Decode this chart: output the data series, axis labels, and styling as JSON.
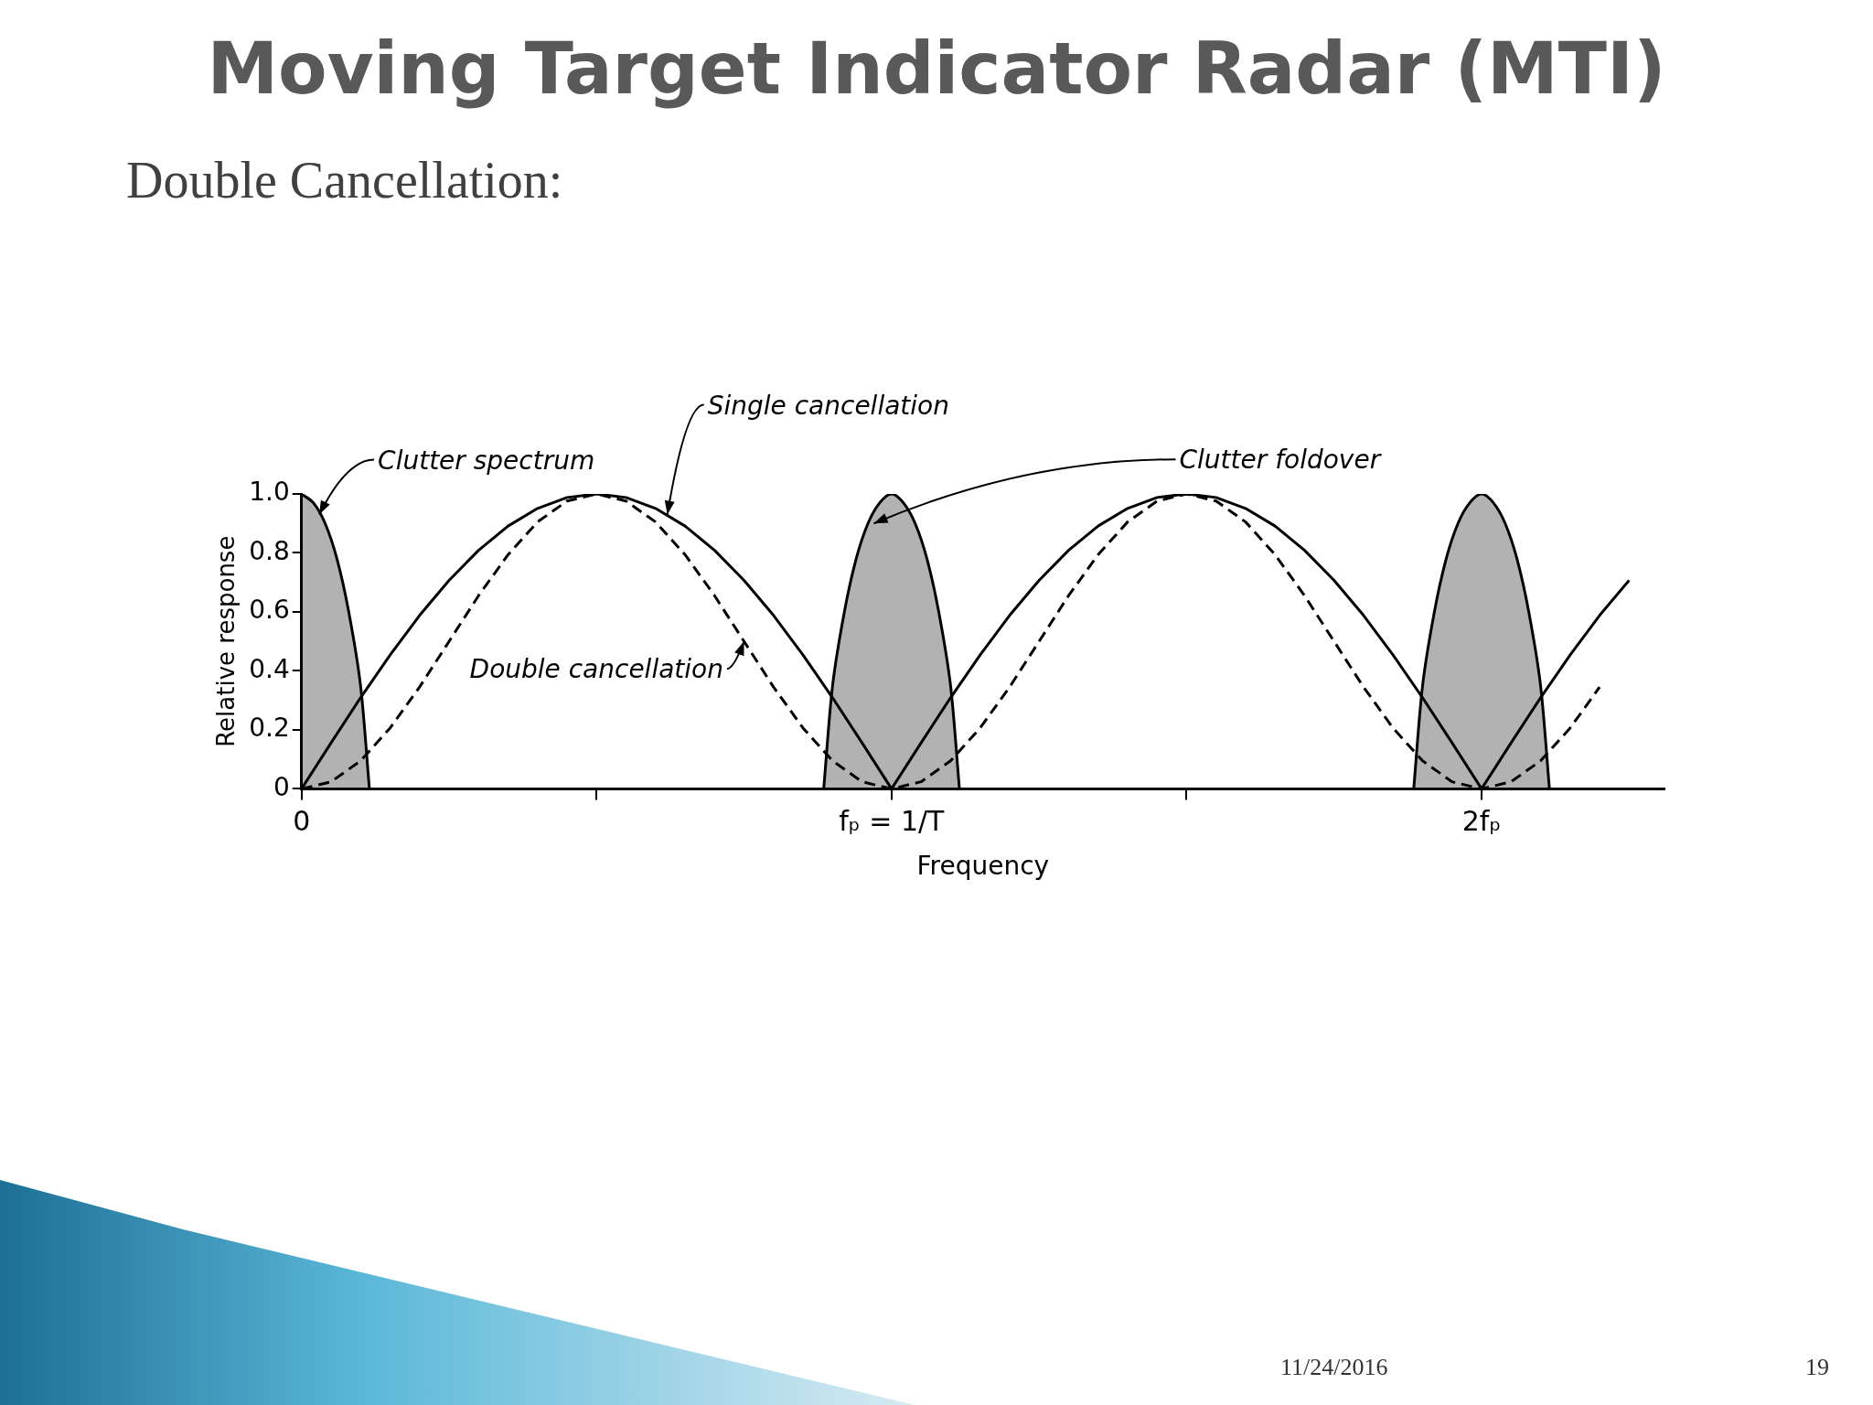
{
  "chart_data": {
    "type": "line",
    "title": "Moving Target Indicator Radar (MTI)",
    "subtitle": "Double Cancellation:",
    "xlabel": "Frequency",
    "ylabel": "Relative response",
    "x": [
      0,
      0.05,
      0.1,
      0.15,
      0.2,
      0.25,
      0.3,
      0.35,
      0.4,
      0.45,
      0.5,
      0.55,
      0.6,
      0.65,
      0.7,
      0.75,
      0.8,
      0.85,
      0.9,
      0.95,
      1,
      1.05,
      1.1,
      1.15,
      1.2,
      1.25,
      1.3,
      1.35,
      1.4,
      1.45,
      1.5,
      1.55,
      1.6,
      1.65,
      1.7,
      1.75,
      1.8,
      1.85,
      1.9,
      1.95,
      2,
      2.05,
      2.1,
      2.15,
      2.2,
      2.25
    ],
    "series": [
      {
        "type": "line",
        "color": "#000000",
        "line_style": "solid",
        "values": [
          0,
          0.156,
          0.309,
          0.454,
          0.588,
          0.707,
          0.809,
          0.891,
          0.951,
          0.988,
          1,
          0.988,
          0.951,
          0.891,
          0.809,
          0.707,
          0.588,
          0.454,
          0.309,
          0.156,
          0,
          0.156,
          0.309,
          0.454,
          0.588,
          0.707,
          0.809,
          0.891,
          0.951,
          0.988,
          1,
          0.988,
          0.951,
          0.891,
          0.809,
          0.707,
          0.588,
          0.454,
          0.309,
          0.156,
          0,
          0.156,
          0.309,
          0.454,
          0.588,
          0.707
        ]
      },
      {
        "type": "line",
        "color": "#000000",
        "line_style": "dashed",
        "values": [
          0,
          0.024,
          0.095,
          0.206,
          0.345,
          0.5,
          0.655,
          0.794,
          0.905,
          0.976,
          1,
          0.976,
          0.905,
          0.794,
          0.655,
          0.5,
          0.345,
          0.206,
          0.095,
          0.024,
          0,
          0.024,
          0.095,
          0.206,
          0.345,
          0.5,
          0.655,
          0.794,
          0.905,
          0.976,
          1,
          0.976,
          0.905,
          0.794,
          0.655,
          0.5,
          0.345,
          0.206,
          0.095,
          0.024,
          0,
          0.024,
          0.095,
          0.206,
          0.345,
          null
        ]
      },
      {
        "type": "area",
        "color": "#000000",
        "x": [
          0,
          0.02,
          0.04,
          0.06,
          0.08,
          0.1,
          0.115
        ],
        "values": [
          1,
          0.97,
          0.9,
          0.78,
          0.6,
          0.35,
          0
        ]
      },
      {
        "type": "area",
        "color": "#000000",
        "x": [
          0.885,
          0.9,
          0.92,
          0.94,
          0.96,
          0.98,
          1,
          1.02,
          1.04,
          1.06,
          1.08,
          1.1,
          1.115
        ],
        "values": [
          0,
          0.35,
          0.6,
          0.78,
          0.9,
          0.97,
          1,
          0.97,
          0.9,
          0.78,
          0.6,
          0.35,
          0
        ]
      },
      {
        "type": "area",
        "color": "#000000",
        "x": [
          1.885,
          1.9,
          1.92,
          1.94,
          1.96,
          1.98,
          2,
          2.02,
          2.04,
          2.06,
          2.08,
          2.1,
          2.115
        ],
        "values": [
          0,
          0.35,
          0.6,
          0.78,
          0.9,
          0.97,
          1,
          0.97,
          0.9,
          0.78,
          0.6,
          0.35,
          0
        ]
      }
    ],
    "xlim": [
      0,
      2.31
    ],
    "xticks": [
      {
        "value": 0,
        "label": "0"
      },
      {
        "value": 0.5,
        "label": null
      },
      {
        "value": 1,
        "label": "fₚ = 1/T"
      },
      {
        "value": 1.5,
        "label": null
      },
      {
        "value": 2,
        "label": "2fₚ"
      }
    ],
    "ylim": [
      0,
      1
    ],
    "yticks": [
      0,
      0.2,
      0.4,
      0.6,
      0.8,
      {
        "value": 1,
        "label": "1.0"
      }
    ],
    "grid": false,
    "legend": false,
    "annotations": [
      {
        "text": "Clutter spectrum",
        "x": 0.03,
        "y": 0.93
      },
      {
        "text": "Single cancellation",
        "x": 0.62,
        "y": 0.93
      },
      {
        "text": "Clutter foldover",
        "x": 0.97,
        "y": 0.9
      },
      {
        "text": "Double cancellation",
        "x": 0.75,
        "y": 0.5
      },
      "11/24/2016",
      "19"
    ]
  }
}
